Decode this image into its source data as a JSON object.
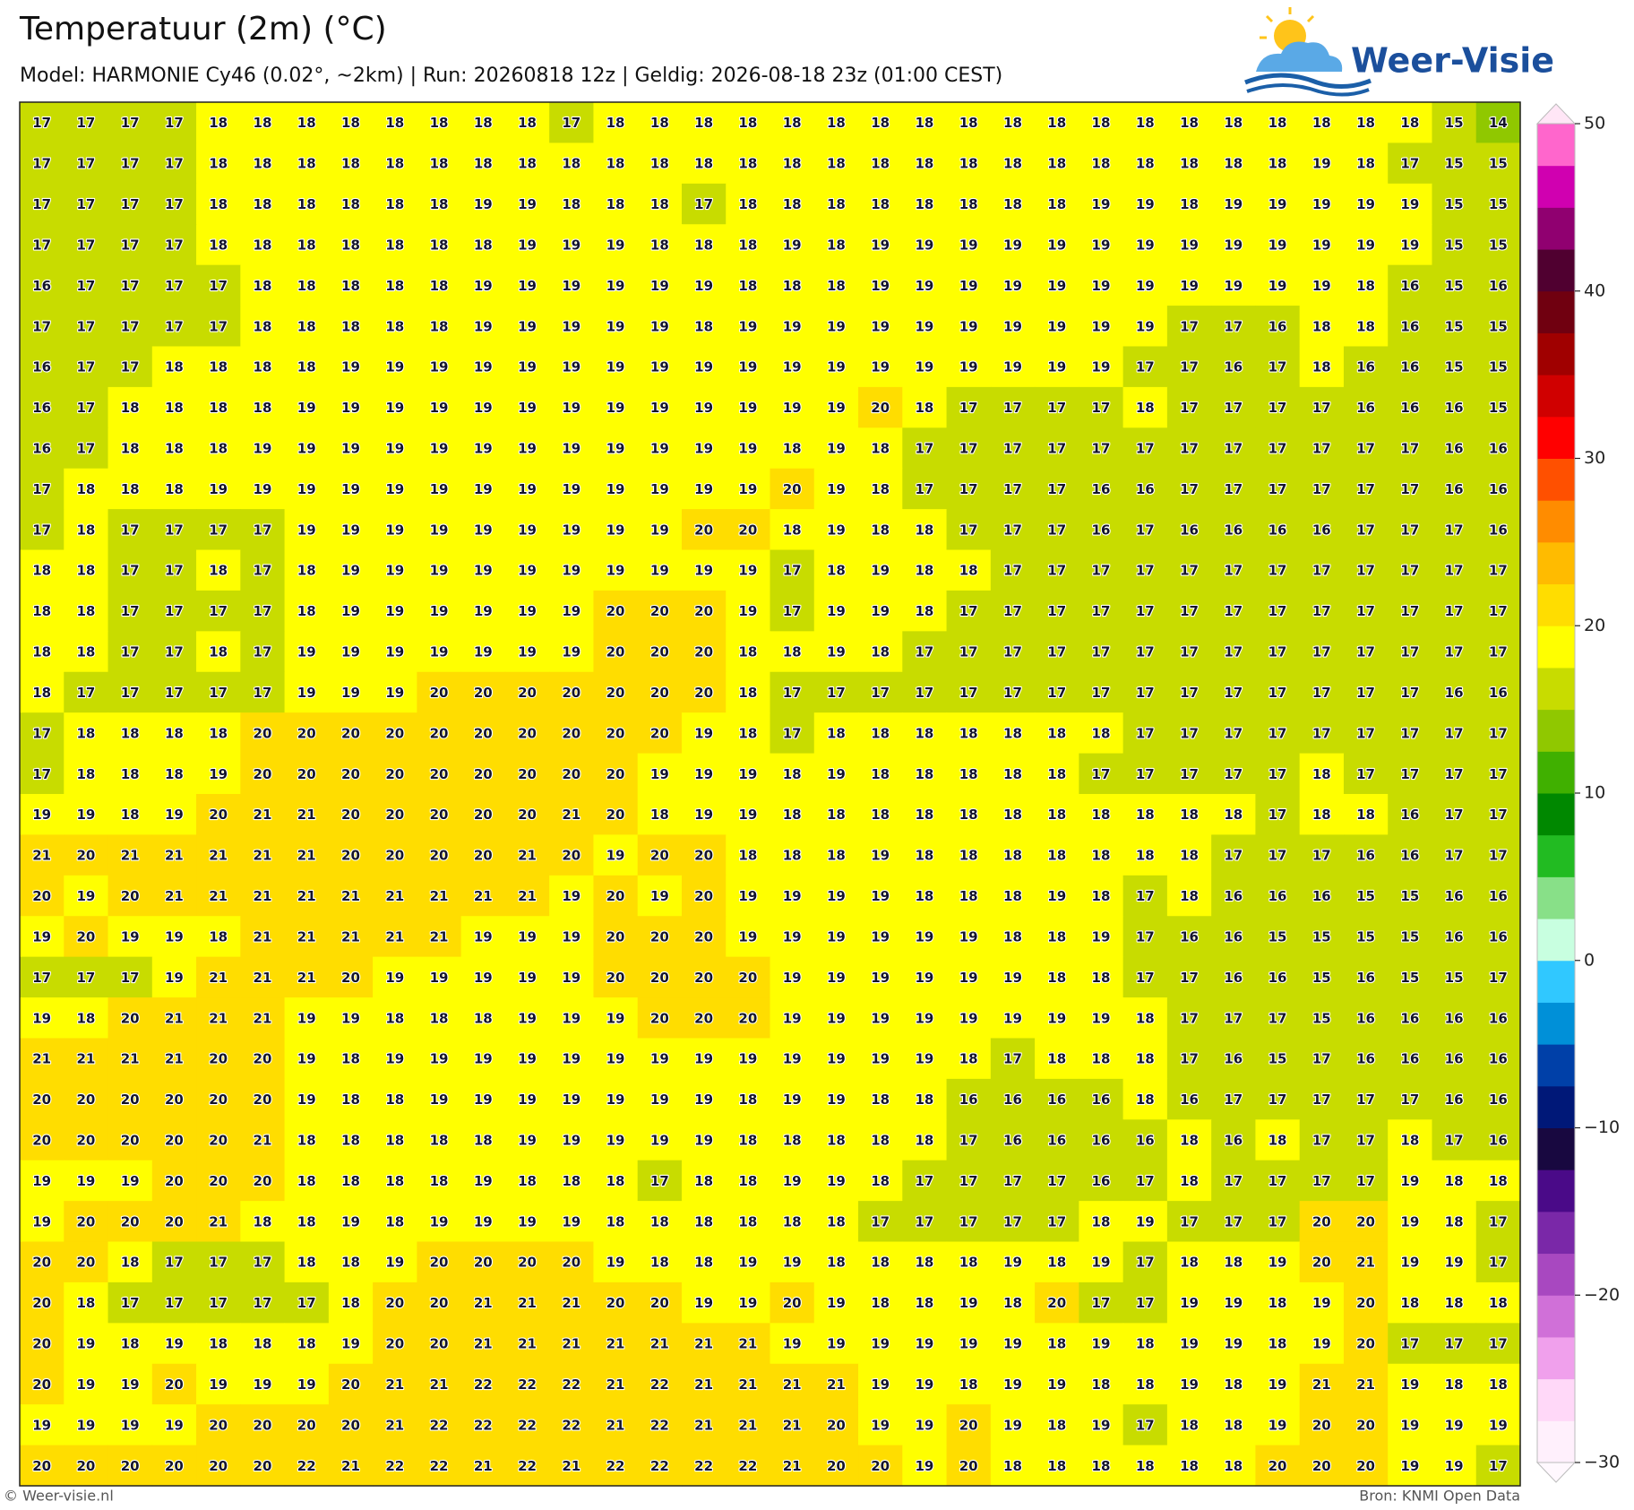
{
  "header": {
    "title": "Temperatuur (2m) (°C)",
    "subtitle": "Model: HARMONIE Cy46 (0.02°, ~2km)  |  Run: 20260818 12z  |  Geldig: 2026-08-18 23z (01:00 CEST)"
  },
  "logo": {
    "text": "Weer-Visie"
  },
  "map": {
    "rows": [
      [
        17,
        17,
        17,
        17,
        18,
        18,
        18,
        18,
        18,
        18,
        18,
        18,
        17,
        18,
        18,
        18,
        18,
        18,
        18,
        18,
        18,
        18,
        18,
        18,
        18,
        18,
        18,
        18,
        18,
        18,
        18,
        18,
        15,
        14
      ],
      [
        17,
        17,
        17,
        17,
        18,
        18,
        18,
        18,
        18,
        18,
        18,
        18,
        18,
        18,
        18,
        18,
        18,
        18,
        18,
        18,
        18,
        18,
        18,
        18,
        18,
        18,
        18,
        18,
        18,
        19,
        18,
        17,
        15,
        15
      ],
      [
        17,
        17,
        17,
        17,
        18,
        18,
        18,
        18,
        18,
        18,
        19,
        19,
        18,
        18,
        18,
        17,
        18,
        18,
        18,
        18,
        18,
        18,
        18,
        18,
        19,
        19,
        18,
        19,
        19,
        19,
        19,
        19,
        15,
        15
      ],
      [
        17,
        17,
        17,
        17,
        18,
        18,
        18,
        18,
        18,
        18,
        18,
        19,
        19,
        19,
        18,
        18,
        18,
        19,
        18,
        19,
        19,
        19,
        19,
        19,
        19,
        19,
        19,
        19,
        19,
        19,
        19,
        19,
        15,
        15
      ],
      [
        16,
        17,
        17,
        17,
        17,
        18,
        18,
        18,
        18,
        18,
        19,
        19,
        19,
        19,
        19,
        19,
        18,
        18,
        18,
        19,
        19,
        19,
        19,
        19,
        19,
        19,
        19,
        19,
        19,
        19,
        18,
        16,
        15,
        16
      ],
      [
        17,
        17,
        17,
        17,
        17,
        18,
        18,
        18,
        18,
        18,
        19,
        19,
        19,
        19,
        19,
        18,
        19,
        19,
        19,
        19,
        19,
        19,
        19,
        19,
        19,
        19,
        17,
        17,
        16,
        18,
        18,
        16,
        15,
        15
      ],
      [
        16,
        17,
        17,
        18,
        18,
        18,
        18,
        19,
        19,
        19,
        19,
        19,
        19,
        19,
        19,
        19,
        19,
        19,
        19,
        19,
        19,
        19,
        19,
        19,
        19,
        17,
        17,
        16,
        17,
        18,
        16,
        16,
        15,
        15
      ],
      [
        16,
        17,
        18,
        18,
        18,
        18,
        19,
        19,
        19,
        19,
        19,
        19,
        19,
        19,
        19,
        19,
        19,
        19,
        19,
        20,
        18,
        17,
        17,
        17,
        17,
        18,
        17,
        17,
        17,
        17,
        16,
        16,
        16,
        15
      ],
      [
        16,
        17,
        18,
        18,
        18,
        19,
        19,
        19,
        19,
        19,
        19,
        19,
        19,
        19,
        19,
        19,
        19,
        18,
        19,
        18,
        17,
        17,
        17,
        17,
        17,
        17,
        17,
        17,
        17,
        17,
        17,
        17,
        16,
        16
      ],
      [
        17,
        18,
        18,
        18,
        19,
        19,
        19,
        19,
        19,
        19,
        19,
        19,
        19,
        19,
        19,
        19,
        19,
        20,
        19,
        18,
        17,
        17,
        17,
        17,
        16,
        16,
        17,
        17,
        17,
        17,
        17,
        17,
        16,
        16
      ],
      [
        17,
        18,
        17,
        17,
        17,
        17,
        19,
        19,
        19,
        19,
        19,
        19,
        19,
        19,
        19,
        20,
        20,
        18,
        19,
        18,
        18,
        17,
        17,
        17,
        16,
        17,
        16,
        16,
        16,
        16,
        17,
        17,
        17,
        16
      ],
      [
        18,
        18,
        17,
        17,
        18,
        17,
        18,
        19,
        19,
        19,
        19,
        19,
        19,
        19,
        19,
        19,
        19,
        17,
        18,
        19,
        18,
        18,
        17,
        17,
        17,
        17,
        17,
        17,
        17,
        17,
        17,
        17,
        17,
        17
      ],
      [
        18,
        18,
        17,
        17,
        17,
        17,
        18,
        19,
        19,
        19,
        19,
        19,
        19,
        20,
        20,
        20,
        19,
        17,
        19,
        19,
        18,
        17,
        17,
        17,
        17,
        17,
        17,
        17,
        17,
        17,
        17,
        17,
        17,
        17
      ],
      [
        18,
        18,
        17,
        17,
        18,
        17,
        19,
        19,
        19,
        19,
        19,
        19,
        19,
        20,
        20,
        20,
        18,
        18,
        19,
        18,
        17,
        17,
        17,
        17,
        17,
        17,
        17,
        17,
        17,
        17,
        17,
        17,
        17,
        17
      ],
      [
        18,
        17,
        17,
        17,
        17,
        17,
        19,
        19,
        19,
        20,
        20,
        20,
        20,
        20,
        20,
        20,
        18,
        17,
        17,
        17,
        17,
        17,
        17,
        17,
        17,
        17,
        17,
        17,
        17,
        17,
        17,
        17,
        16,
        16
      ],
      [
        17,
        18,
        18,
        18,
        18,
        20,
        20,
        20,
        20,
        20,
        20,
        20,
        20,
        20,
        20,
        19,
        18,
        17,
        18,
        18,
        18,
        18,
        18,
        18,
        18,
        17,
        17,
        17,
        17,
        17,
        17,
        17,
        17,
        17
      ],
      [
        17,
        18,
        18,
        18,
        19,
        20,
        20,
        20,
        20,
        20,
        20,
        20,
        20,
        20,
        19,
        19,
        19,
        18,
        19,
        18,
        18,
        18,
        18,
        18,
        17,
        17,
        17,
        17,
        17,
        18,
        17,
        17,
        17,
        17
      ],
      [
        19,
        19,
        18,
        19,
        20,
        21,
        21,
        20,
        20,
        20,
        20,
        20,
        21,
        20,
        18,
        19,
        19,
        18,
        18,
        18,
        18,
        18,
        18,
        18,
        18,
        18,
        18,
        18,
        17,
        18,
        18,
        16,
        17,
        17
      ],
      [
        21,
        20,
        21,
        21,
        21,
        21,
        21,
        20,
        20,
        20,
        20,
        21,
        20,
        19,
        20,
        20,
        18,
        18,
        18,
        19,
        18,
        18,
        18,
        18,
        18,
        18,
        18,
        17,
        17,
        17,
        16,
        16,
        17,
        17
      ],
      [
        20,
        19,
        20,
        21,
        21,
        21,
        21,
        21,
        21,
        21,
        21,
        21,
        19,
        20,
        19,
        20,
        19,
        19,
        19,
        19,
        18,
        18,
        18,
        19,
        18,
        17,
        18,
        16,
        16,
        16,
        15,
        15,
        16,
        16
      ],
      [
        19,
        20,
        19,
        19,
        18,
        21,
        21,
        21,
        21,
        21,
        19,
        19,
        19,
        20,
        20,
        20,
        19,
        19,
        19,
        19,
        19,
        19,
        18,
        18,
        19,
        17,
        16,
        16,
        15,
        15,
        15,
        15,
        16,
        16
      ],
      [
        17,
        17,
        17,
        19,
        21,
        21,
        21,
        20,
        19,
        19,
        19,
        19,
        19,
        20,
        20,
        20,
        20,
        19,
        19,
        19,
        19,
        19,
        19,
        18,
        18,
        17,
        17,
        16,
        16,
        15,
        16,
        15,
        15,
        17
      ],
      [
        19,
        18,
        20,
        21,
        21,
        21,
        19,
        19,
        18,
        18,
        18,
        19,
        19,
        19,
        20,
        20,
        20,
        19,
        19,
        19,
        19,
        19,
        19,
        19,
        19,
        18,
        17,
        17,
        17,
        15,
        16,
        16,
        16,
        16
      ],
      [
        21,
        21,
        21,
        21,
        20,
        20,
        19,
        18,
        19,
        19,
        19,
        19,
        19,
        19,
        19,
        19,
        19,
        19,
        19,
        19,
        19,
        18,
        17,
        18,
        18,
        18,
        17,
        16,
        15,
        17,
        16,
        16,
        16,
        16
      ],
      [
        20,
        20,
        20,
        20,
        20,
        20,
        19,
        18,
        18,
        19,
        19,
        19,
        19,
        19,
        19,
        19,
        18,
        19,
        19,
        18,
        18,
        16,
        16,
        16,
        16,
        18,
        16,
        17,
        17,
        17,
        17,
        17,
        16,
        16
      ],
      [
        20,
        20,
        20,
        20,
        20,
        21,
        18,
        18,
        18,
        18,
        18,
        19,
        19,
        19,
        19,
        19,
        18,
        18,
        18,
        18,
        18,
        17,
        16,
        16,
        16,
        16,
        18,
        16,
        18,
        17,
        17,
        18,
        17,
        16
      ],
      [
        19,
        19,
        19,
        20,
        20,
        20,
        18,
        18,
        18,
        18,
        19,
        18,
        18,
        18,
        17,
        18,
        18,
        19,
        19,
        18,
        17,
        17,
        17,
        17,
        16,
        17,
        18,
        17,
        17,
        17,
        17,
        19,
        18,
        18
      ],
      [
        19,
        20,
        20,
        20,
        21,
        18,
        18,
        19,
        18,
        19,
        19,
        19,
        19,
        18,
        18,
        18,
        18,
        18,
        18,
        17,
        17,
        17,
        17,
        17,
        18,
        19,
        17,
        17,
        17,
        20,
        20,
        19,
        18,
        17
      ],
      [
        20,
        20,
        18,
        17,
        17,
        17,
        18,
        18,
        19,
        20,
        20,
        20,
        20,
        19,
        18,
        18,
        19,
        19,
        18,
        18,
        18,
        18,
        19,
        18,
        19,
        17,
        18,
        18,
        19,
        20,
        21,
        19,
        19,
        17
      ],
      [
        20,
        18,
        17,
        17,
        17,
        17,
        17,
        18,
        20,
        20,
        21,
        21,
        21,
        20,
        20,
        19,
        19,
        20,
        19,
        18,
        18,
        19,
        18,
        20,
        17,
        17,
        19,
        19,
        18,
        19,
        20,
        18,
        18,
        18
      ],
      [
        20,
        19,
        18,
        19,
        18,
        18,
        18,
        19,
        20,
        20,
        21,
        21,
        21,
        21,
        21,
        21,
        21,
        19,
        19,
        19,
        19,
        19,
        19,
        18,
        19,
        18,
        19,
        19,
        18,
        19,
        20,
        17,
        17,
        17
      ],
      [
        20,
        19,
        19,
        20,
        19,
        19,
        19,
        20,
        21,
        21,
        22,
        22,
        22,
        21,
        22,
        21,
        21,
        21,
        21,
        19,
        19,
        18,
        19,
        19,
        18,
        18,
        19,
        18,
        19,
        21,
        21,
        19,
        18,
        18
      ],
      [
        19,
        19,
        19,
        19,
        20,
        20,
        20,
        20,
        21,
        22,
        22,
        22,
        22,
        21,
        22,
        21,
        21,
        21,
        20,
        19,
        19,
        20,
        19,
        18,
        19,
        17,
        18,
        18,
        19,
        20,
        20,
        19,
        19,
        19
      ],
      [
        20,
        20,
        20,
        20,
        20,
        20,
        22,
        21,
        22,
        22,
        21,
        22,
        21,
        22,
        22,
        22,
        22,
        21,
        20,
        20,
        19,
        20,
        18,
        18,
        18,
        18,
        18,
        18,
        20,
        20,
        20,
        19,
        19,
        17
      ]
    ]
  },
  "colorbar": {
    "ylim": [
      -30,
      50
    ],
    "yticks": [
      50,
      40,
      30,
      20,
      10,
      0,
      {
        "value": -10,
        "label": "−10"
      },
      {
        "value": -20,
        "label": "−20"
      },
      {
        "value": -30,
        "label": "−30"
      }
    ],
    "colors": [
      "#fff0fc",
      "#ffd8f8",
      "#f0a0ec",
      "#d070d8",
      "#a848c0",
      "#7a28a8",
      "#4a0a88",
      "#180840",
      "#001878",
      "#0040a8",
      "#0090d8",
      "#30c8ff",
      "#c8ffe0",
      "#88e088",
      "#22bb22",
      "#008800",
      "#40b000",
      "#90c800",
      "#c8dc00",
      "#ffff00",
      "#ffdd00",
      "#ffbb00",
      "#ff8c00",
      "#ff5000",
      "#ff0000",
      "#d00000",
      "#a00000",
      "#700010",
      "#500030",
      "#900070",
      "#d000b0",
      "#ff66cc"
    ]
  },
  "footer": {
    "left": "© Weer-visie.nl",
    "right": "Bron: KNMI Open Data"
  }
}
